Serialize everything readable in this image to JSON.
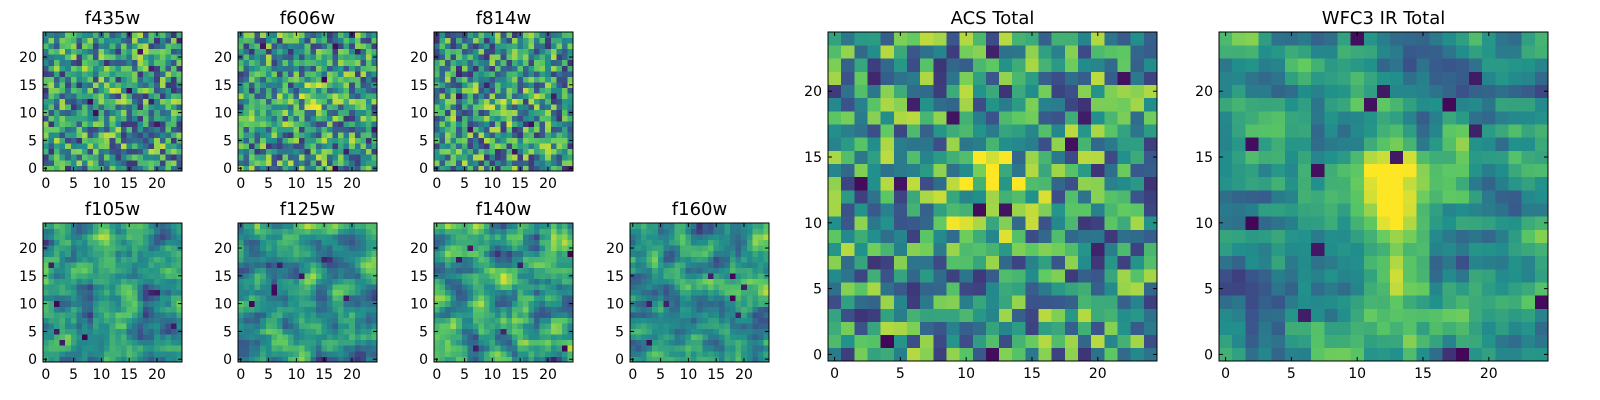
{
  "chart_data": [
    {
      "type": "heatmap",
      "title": "f435w",
      "xlim": [
        0,
        24
      ],
      "ylim": [
        0,
        24
      ],
      "xticks": [
        0,
        5,
        10,
        15,
        20
      ],
      "yticks": [
        0,
        5,
        10,
        15,
        20
      ],
      "tick_labels_x": [
        "0",
        "5",
        "10",
        "15",
        "20"
      ],
      "tick_labels_y": [
        "0",
        "5",
        "10",
        "15",
        "20"
      ],
      "grid": false
    },
    {
      "type": "heatmap",
      "title": "f606w",
      "xlim": [
        0,
        24
      ],
      "ylim": [
        0,
        24
      ],
      "xticks": [
        0,
        5,
        10,
        15,
        20
      ],
      "yticks": [
        0,
        5,
        10,
        15,
        20
      ],
      "tick_labels_x": [
        "0",
        "5",
        "10",
        "15",
        "20"
      ],
      "tick_labels_y": [
        "0",
        "5",
        "10",
        "15",
        "20"
      ],
      "grid": false
    },
    {
      "type": "heatmap",
      "title": "f814w",
      "xlim": [
        0,
        24
      ],
      "ylim": [
        0,
        24
      ],
      "xticks": [
        0,
        5,
        10,
        15,
        20
      ],
      "yticks": [
        0,
        5,
        10,
        15,
        20
      ],
      "tick_labels_x": [
        "0",
        "5",
        "10",
        "15",
        "20"
      ],
      "tick_labels_y": [
        "0",
        "5",
        "10",
        "15",
        "20"
      ],
      "grid": false
    },
    {
      "type": "heatmap",
      "title": "f105w",
      "xlim": [
        0,
        24
      ],
      "ylim": [
        0,
        24
      ],
      "xticks": [
        0,
        5,
        10,
        15,
        20
      ],
      "yticks": [
        0,
        5,
        10,
        15,
        20
      ],
      "tick_labels_x": [
        "0",
        "5",
        "10",
        "15",
        "20"
      ],
      "tick_labels_y": [
        "0",
        "5",
        "10",
        "15",
        "20"
      ],
      "grid": false
    },
    {
      "type": "heatmap",
      "title": "f125w",
      "xlim": [
        0,
        24
      ],
      "ylim": [
        0,
        24
      ],
      "xticks": [
        0,
        5,
        10,
        15,
        20
      ],
      "yticks": [
        0,
        5,
        10,
        15,
        20
      ],
      "tick_labels_x": [
        "0",
        "5",
        "10",
        "15",
        "20"
      ],
      "tick_labels_y": [
        "0",
        "5",
        "10",
        "15",
        "20"
      ],
      "grid": false
    },
    {
      "type": "heatmap",
      "title": "f140w",
      "xlim": [
        0,
        24
      ],
      "ylim": [
        0,
        24
      ],
      "xticks": [
        0,
        5,
        10,
        15,
        20
      ],
      "yticks": [
        0,
        5,
        10,
        15,
        20
      ],
      "tick_labels_x": [
        "0",
        "5",
        "10",
        "15",
        "20"
      ],
      "tick_labels_y": [
        "0",
        "5",
        "10",
        "15",
        "20"
      ],
      "grid": false
    },
    {
      "type": "heatmap",
      "title": "f160w",
      "xlim": [
        0,
        24
      ],
      "ylim": [
        0,
        24
      ],
      "xticks": [
        0,
        5,
        10,
        15,
        20
      ],
      "yticks": [
        0,
        5,
        10,
        15,
        20
      ],
      "tick_labels_x": [
        "0",
        "5",
        "10",
        "15",
        "20"
      ],
      "tick_labels_y": [
        "0",
        "5",
        "10",
        "15",
        "20"
      ],
      "grid": false
    },
    {
      "type": "heatmap",
      "title": "ACS Total",
      "xlim": [
        0,
        24
      ],
      "ylim": [
        0,
        24
      ],
      "xticks": [
        0,
        5,
        10,
        15,
        20
      ],
      "yticks": [
        0,
        5,
        10,
        15,
        20
      ],
      "tick_labels_x": [
        "0",
        "5",
        "10",
        "15",
        "20"
      ],
      "tick_labels_y": [
        "0",
        "5",
        "10",
        "15",
        "20"
      ],
      "grid": false
    },
    {
      "type": "heatmap",
      "title": "WFC3 IR Total",
      "xlim": [
        0,
        24
      ],
      "ylim": [
        0,
        24
      ],
      "xticks": [
        0,
        5,
        10,
        15,
        20
      ],
      "yticks": [
        0,
        5,
        10,
        15,
        20
      ],
      "tick_labels_x": [
        "0",
        "5",
        "10",
        "15",
        "20"
      ],
      "tick_labels_y": [
        "0",
        "5",
        "10",
        "15",
        "20"
      ],
      "grid": false
    }
  ],
  "colormap": {
    "name": "viridis",
    "stops": [
      "#440154",
      "#3b528b",
      "#21918c",
      "#5ec962",
      "#fde725"
    ]
  }
}
